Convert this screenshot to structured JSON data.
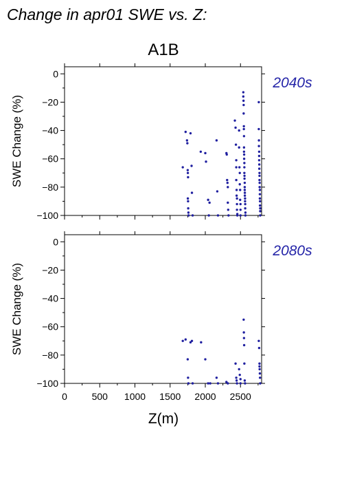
{
  "figure": {
    "title": "Change in apr01 SWE vs. Z:",
    "scenario": "A1B",
    "xlabel": "Z(m)",
    "series_color": "#2020a0",
    "label_color": "#2424a8"
  },
  "chart_data": [
    {
      "type": "scatter",
      "period": "2040s",
      "ylabel": "SWE Change (%)",
      "xlim": [
        0,
        2800
      ],
      "ylim": [
        -100,
        5
      ],
      "xticks": [
        0,
        500,
        1000,
        1500,
        2000,
        2500
      ],
      "yticks": [
        0,
        -20,
        -40,
        -60,
        -80,
        -100
      ],
      "x_tick_labels_shown": false,
      "points": [
        [
          1680,
          -66
        ],
        [
          1720,
          -41
        ],
        [
          1740,
          -47
        ],
        [
          1745,
          -49
        ],
        [
          1750,
          -68
        ],
        [
          1752,
          -70
        ],
        [
          1755,
          -73
        ],
        [
          1752,
          -88
        ],
        [
          1755,
          -90
        ],
        [
          1757,
          -95
        ],
        [
          1760,
          -98
        ],
        [
          1762,
          -100
        ],
        [
          1790,
          -42
        ],
        [
          1805,
          -65
        ],
        [
          1810,
          -84
        ],
        [
          1820,
          -100
        ],
        [
          1935,
          -55
        ],
        [
          2000,
          -56
        ],
        [
          2010,
          -62
        ],
        [
          2040,
          -89
        ],
        [
          2050,
          -100
        ],
        [
          2060,
          -91
        ],
        [
          2160,
          -47
        ],
        [
          2170,
          -83
        ],
        [
          2180,
          -100
        ],
        [
          2300,
          -56
        ],
        [
          2305,
          -57
        ],
        [
          2310,
          -75
        ],
        [
          2315,
          -77
        ],
        [
          2320,
          -80
        ],
        [
          2320,
          -91
        ],
        [
          2325,
          -96
        ],
        [
          2330,
          -100
        ],
        [
          2420,
          -33
        ],
        [
          2430,
          -38
        ],
        [
          2435,
          -50
        ],
        [
          2440,
          -61
        ],
        [
          2440,
          -66
        ],
        [
          2440,
          -75
        ],
        [
          2445,
          -82
        ],
        [
          2445,
          -86
        ],
        [
          2450,
          -88
        ],
        [
          2450,
          -92
        ],
        [
          2450,
          -96
        ],
        [
          2455,
          -99
        ],
        [
          2455,
          -100
        ],
        [
          2480,
          -40
        ],
        [
          2480,
          -52
        ],
        [
          2485,
          -66
        ],
        [
          2490,
          -70
        ],
        [
          2490,
          -78
        ],
        [
          2495,
          -82
        ],
        [
          2495,
          -89
        ],
        [
          2500,
          -92
        ],
        [
          2500,
          -96
        ],
        [
          2500,
          -100
        ],
        [
          2540,
          -13
        ],
        [
          2540,
          -16
        ],
        [
          2543,
          -19
        ],
        [
          2545,
          -22
        ],
        [
          2545,
          -28
        ],
        [
          2548,
          -37
        ],
        [
          2548,
          -39
        ],
        [
          2550,
          -44
        ],
        [
          2550,
          -52
        ],
        [
          2550,
          -55
        ],
        [
          2552,
          -57
        ],
        [
          2552,
          -60
        ],
        [
          2555,
          -63
        ],
        [
          2555,
          -66
        ],
        [
          2555,
          -70
        ],
        [
          2557,
          -72
        ],
        [
          2557,
          -74
        ],
        [
          2560,
          -77
        ],
        [
          2560,
          -80
        ],
        [
          2560,
          -82
        ],
        [
          2562,
          -84
        ],
        [
          2562,
          -86
        ],
        [
          2565,
          -88
        ],
        [
          2565,
          -90
        ],
        [
          2567,
          -92
        ],
        [
          2567,
          -95
        ],
        [
          2570,
          -98
        ],
        [
          2570,
          -100
        ],
        [
          2760,
          -20
        ],
        [
          2760,
          -39
        ],
        [
          2762,
          -47
        ],
        [
          2762,
          -51
        ],
        [
          2765,
          -55
        ],
        [
          2765,
          -58
        ],
        [
          2765,
          -61
        ],
        [
          2767,
          -64
        ],
        [
          2767,
          -67
        ],
        [
          2770,
          -70
        ],
        [
          2770,
          -72
        ],
        [
          2770,
          -75
        ],
        [
          2772,
          -77
        ],
        [
          2772,
          -80
        ],
        [
          2775,
          -82
        ],
        [
          2775,
          -85
        ],
        [
          2775,
          -88
        ],
        [
          2777,
          -90
        ],
        [
          2777,
          -93
        ],
        [
          2780,
          -95
        ],
        [
          2780,
          -97
        ],
        [
          2780,
          -100
        ]
      ]
    },
    {
      "type": "scatter",
      "period": "2080s",
      "ylabel": "SWE Change (%)",
      "xlim": [
        0,
        2800
      ],
      "ylim": [
        -100,
        5
      ],
      "xticks": [
        0,
        500,
        1000,
        1500,
        2000,
        2500
      ],
      "yticks": [
        0,
        -20,
        -40,
        -60,
        -80,
        -100
      ],
      "x_tick_labels_shown": true,
      "points": [
        [
          1680,
          -70
        ],
        [
          1720,
          -69
        ],
        [
          1750,
          -83
        ],
        [
          1755,
          -96
        ],
        [
          1760,
          -100
        ],
        [
          1790,
          -71
        ],
        [
          1810,
          -70
        ],
        [
          1820,
          -100
        ],
        [
          1940,
          -71
        ],
        [
          2000,
          -83
        ],
        [
          2040,
          -100
        ],
        [
          2070,
          -100
        ],
        [
          2160,
          -96
        ],
        [
          2180,
          -100
        ],
        [
          2300,
          -99
        ],
        [
          2320,
          -100
        ],
        [
          2430,
          -86
        ],
        [
          2440,
          -96
        ],
        [
          2445,
          -98
        ],
        [
          2450,
          -100
        ],
        [
          2480,
          -90
        ],
        [
          2490,
          -94
        ],
        [
          2500,
          -97
        ],
        [
          2500,
          -100
        ],
        [
          2545,
          -55
        ],
        [
          2548,
          -64
        ],
        [
          2550,
          -68
        ],
        [
          2552,
          -73
        ],
        [
          2555,
          -86
        ],
        [
          2560,
          -98
        ],
        [
          2565,
          -100
        ],
        [
          2760,
          -70
        ],
        [
          2765,
          -75
        ],
        [
          2770,
          -86
        ],
        [
          2770,
          -88
        ],
        [
          2772,
          -90
        ],
        [
          2775,
          -93
        ],
        [
          2777,
          -96
        ],
        [
          2780,
          -100
        ]
      ]
    }
  ]
}
